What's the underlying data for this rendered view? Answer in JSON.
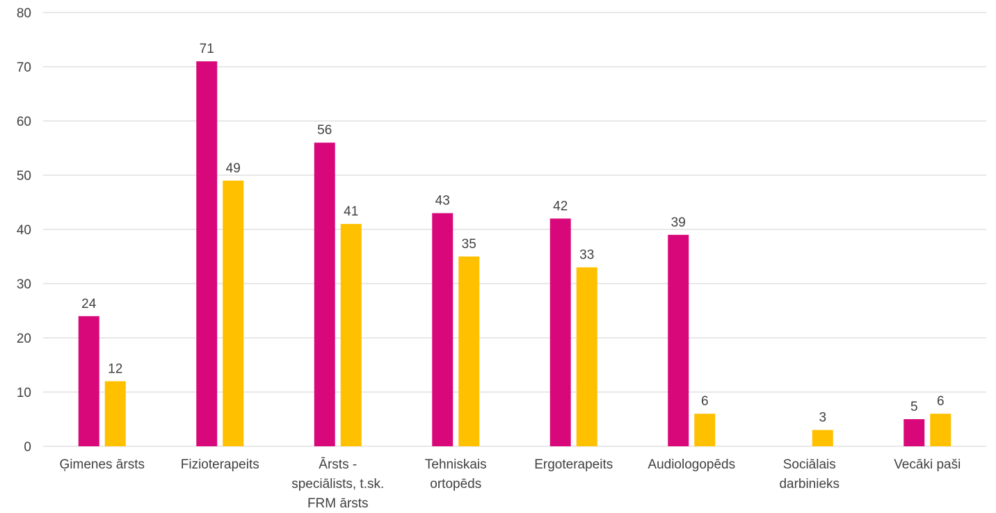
{
  "chart_data": {
    "type": "bar",
    "categories": [
      [
        "Ģimenes ārsts"
      ],
      [
        "Fizioterapeits"
      ],
      [
        "Ārsts -",
        "speciālists, t.sk.",
        "FRM ārsts"
      ],
      [
        "Tehniskais",
        "ortopēds"
      ],
      [
        "Ergoterapeits"
      ],
      [
        "Audiologopēds"
      ],
      [
        "Sociālais",
        "darbinieks"
      ],
      [
        "Vecāki paši"
      ]
    ],
    "series": [
      {
        "color": "#D9087A",
        "values": [
          24,
          71,
          56,
          43,
          42,
          39,
          0,
          5
        ],
        "labels": [
          "24",
          "71",
          "56",
          "43",
          "42",
          "39",
          "",
          "5"
        ]
      },
      {
        "color": "#FFC000",
        "values": [
          12,
          49,
          41,
          35,
          33,
          6,
          3,
          6
        ],
        "labels": [
          "12",
          "49",
          "41",
          "35",
          "33",
          "6",
          "3",
          "6"
        ]
      }
    ],
    "yticks": [
      "0",
      "10",
      "20",
      "30",
      "40",
      "50",
      "60",
      "70",
      "80"
    ],
    "ylim": [
      0,
      80
    ],
    "grid": true,
    "gridColor": "#D9D9D9",
    "title": "",
    "xlabel": "",
    "ylabel": ""
  }
}
